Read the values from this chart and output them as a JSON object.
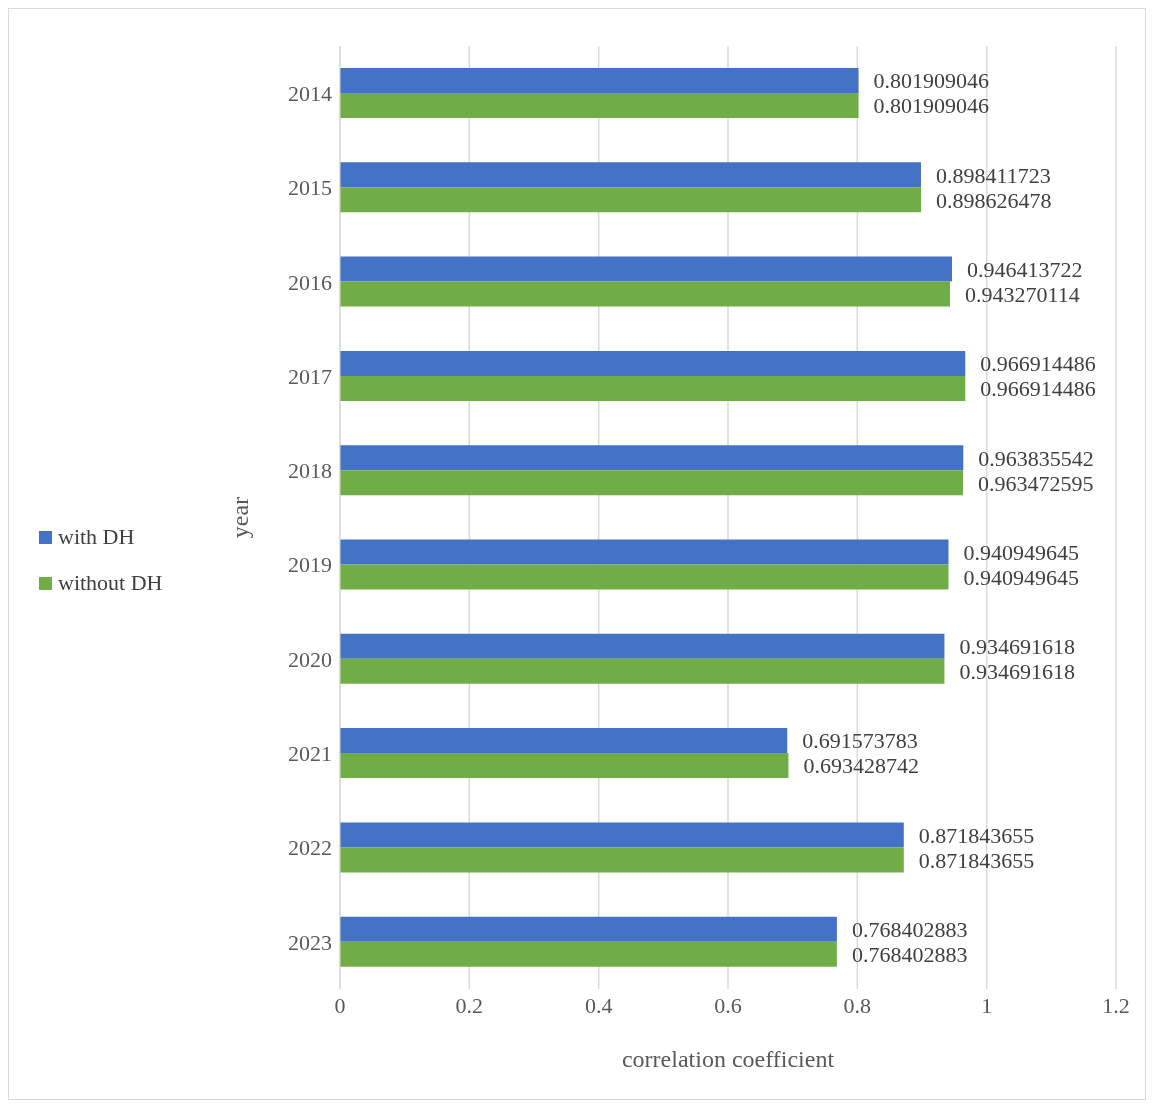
{
  "chart_data": {
    "type": "bar",
    "orientation": "horizontal",
    "xlabel": "correlation coefficient",
    "ylabel": "year",
    "categories": [
      "2014",
      "2015",
      "2016",
      "2017",
      "2018",
      "2019",
      "2020",
      "2021",
      "2022",
      "2023"
    ],
    "series": [
      {
        "name": "with DH",
        "color": "#4472c4",
        "values": [
          0.801909046,
          0.898411723,
          0.946413722,
          0.966914486,
          0.963835542,
          0.940949645,
          0.934691618,
          0.691573783,
          0.871843655,
          0.768402883
        ]
      },
      {
        "name": "without DH",
        "color": "#70ad47",
        "values": [
          0.801909046,
          0.898626478,
          0.943270114,
          0.966914486,
          0.963472595,
          0.940949645,
          0.934691618,
          0.693428742,
          0.871843655,
          0.768402883
        ]
      }
    ],
    "xlim": [
      0,
      1.2
    ],
    "xticks": [
      0,
      0.2,
      0.4,
      0.6,
      0.8,
      1,
      1.2
    ],
    "grid": "x",
    "legend": "left",
    "data_labels": true
  }
}
